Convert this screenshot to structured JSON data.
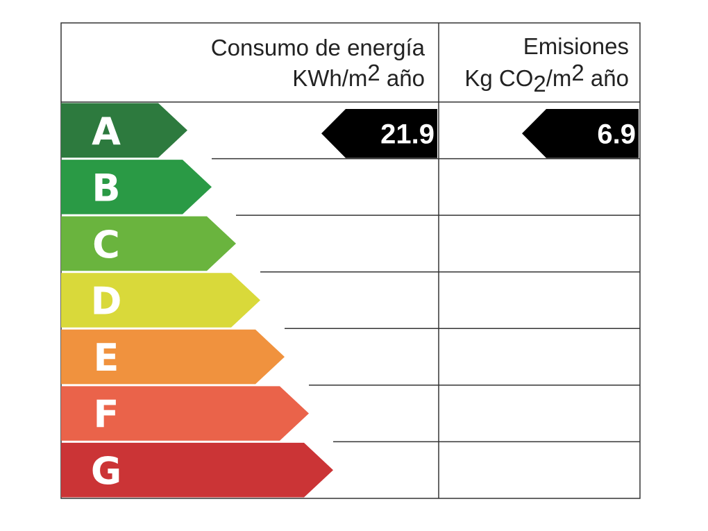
{
  "header": {
    "energy": {
      "title": "Consumo de energía",
      "unit": [
        {
          "text": "KWh/m",
          "pos": "base"
        },
        {
          "text": "2",
          "pos": "sup"
        },
        {
          "text": " año",
          "pos": "base"
        }
      ]
    },
    "emissions": {
      "title": "Emisiones",
      "unit": [
        {
          "text": "Kg CO",
          "pos": "base"
        },
        {
          "text": "2",
          "pos": "sub"
        },
        {
          "text": "/m",
          "pos": "base"
        },
        {
          "text": "2",
          "pos": "sup"
        },
        {
          "text": " año",
          "pos": "base"
        }
      ]
    }
  },
  "ratings": [
    {
      "letter": "A",
      "color": "#2d7a3e"
    },
    {
      "letter": "B",
      "color": "#2a9a45"
    },
    {
      "letter": "C",
      "color": "#6ab43e"
    },
    {
      "letter": "D",
      "color": "#d9d93a"
    },
    {
      "letter": "E",
      "color": "#f0923e"
    },
    {
      "letter": "F",
      "color": "#ea634a"
    },
    {
      "letter": "G",
      "color": "#cb3436"
    }
  ],
  "energy": {
    "rating": "A",
    "value": 21.9
  },
  "emissions": {
    "rating": "A",
    "value": 6.9
  }
}
